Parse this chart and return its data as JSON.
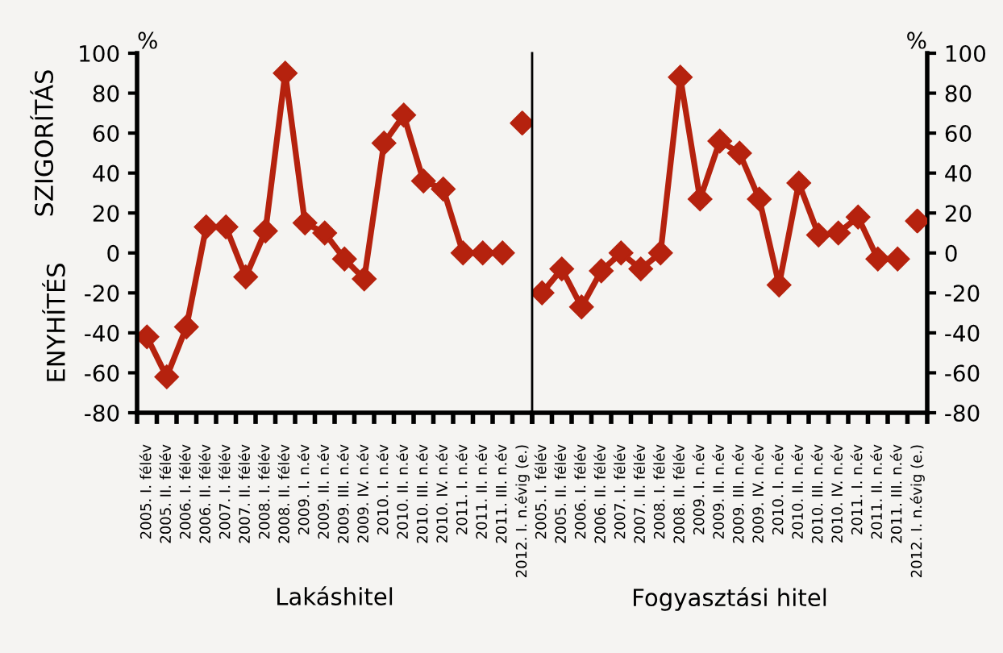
{
  "chart_data": [
    {
      "type": "line",
      "xlabel": "Lakáshitel",
      "ylabel": "SZIGORÍTÁS",
      "annotations": [
        "%",
        "ENYHÍTÉS"
      ],
      "categories": [
        "2005. I. félév",
        "2005. II. félév",
        "2006. I. félév",
        "2006. II. félév",
        "2007. I. félév",
        "2007. II. félév",
        "2008. I. félév",
        "2008. II. félév",
        "2009. I. n.év",
        "2009. II. n.év",
        "2009. III. n.év",
        "2009. IV. n.év",
        "2010. I. n.év",
        "2010. II. n.év",
        "2010. III. n.év",
        "2010. IV. n.év",
        "2011. I. n.év",
        "2011. II. n.év",
        "2011. III. n.év",
        "2012. I. n.évig (e.)"
      ],
      "series": [
        {
          "color": "#b5220e",
          "values": [
            -42,
            -62,
            -37,
            13,
            13,
            -12,
            11,
            90,
            15,
            10,
            -3,
            -13,
            55,
            69,
            36,
            32,
            0,
            0,
            0,
            null
          ]
        },
        {
          "type": "scatter",
          "color": "#b5220e",
          "values": [
            null,
            null,
            null,
            null,
            null,
            null,
            null,
            null,
            null,
            null,
            null,
            null,
            null,
            null,
            null,
            null,
            null,
            null,
            null,
            65
          ]
        }
      ],
      "ylim": [
        -80,
        100
      ],
      "yticks": [
        -80,
        -60,
        -40,
        -20,
        0,
        20,
        40,
        60,
        80,
        100
      ],
      "marker": "diamond",
      "grid": false,
      "legend": false
    },
    {
      "type": "line",
      "xlabel": "Fogyasztási hitel",
      "annotations": [
        "%"
      ],
      "categories": [
        "2005. I. félév",
        "2005. II. félév",
        "2006. I. félév",
        "2006. II. félév",
        "2007. I. félév",
        "2007. II. félév",
        "2008. I. félév",
        "2008. II. félév",
        "2009. I. n.év",
        "2009. II. n.év",
        "2009. III. n.év",
        "2009. IV. n.év",
        "2010. I. n.év",
        "2010. II. n.év",
        "2010. III. n.év",
        "2010. IV. n.év",
        "2011. I. n.év",
        "2011. II. n.év",
        "2011. III. n.év",
        "2012. I. n.évig (e.)"
      ],
      "series": [
        {
          "axis": "y2",
          "color": "#b5220e",
          "values": [
            -20,
            -8,
            -27,
            -9,
            0,
            -8,
            0,
            88,
            27,
            56,
            50,
            27,
            -16,
            35,
            9,
            10,
            18,
            -3,
            -3,
            null
          ]
        },
        {
          "type": "scatter",
          "axis": "y2",
          "color": "#b5220e",
          "values": [
            null,
            null,
            null,
            null,
            null,
            null,
            null,
            null,
            null,
            null,
            null,
            null,
            null,
            null,
            null,
            null,
            null,
            null,
            null,
            16
          ]
        }
      ],
      "y2lim": [
        -80,
        100
      ],
      "y2ticks": [
        -80,
        -60,
        -40,
        -20,
        0,
        20,
        40,
        60,
        80,
        100
      ],
      "marker": "diamond",
      "grid": false,
      "legend": false
    }
  ]
}
